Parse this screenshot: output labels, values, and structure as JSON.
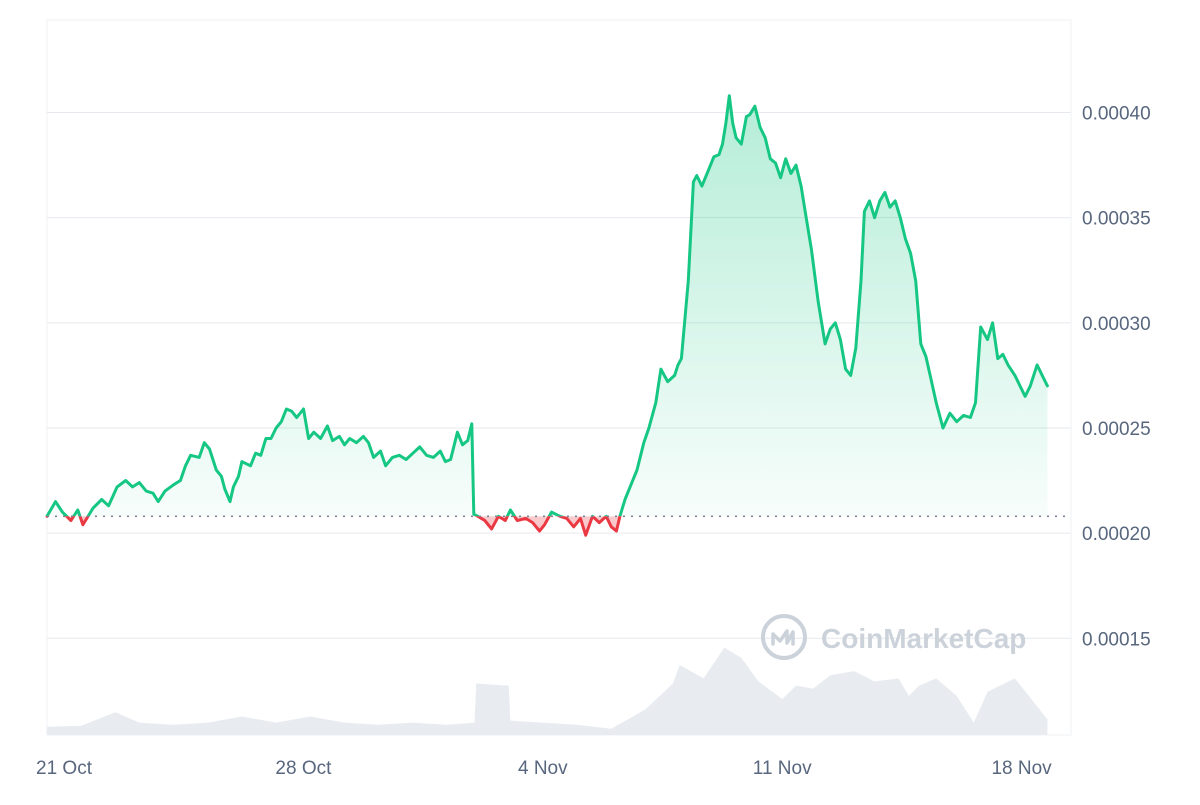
{
  "chart_data": {
    "type": "area",
    "y_unit": "USD",
    "ylim": [
      0.000104,
      0.000444
    ],
    "y_ticks": [
      {
        "value": 0.0004,
        "label": "0.00040"
      },
      {
        "value": 0.00035,
        "label": "0.00035"
      },
      {
        "value": 0.0003,
        "label": "0.00030"
      },
      {
        "value": 0.00025,
        "label": "0.00025"
      },
      {
        "value": 0.0002,
        "label": "0.00020"
      },
      {
        "value": 0.00015,
        "label": "0.00015"
      }
    ],
    "x_ticks": [
      {
        "day": 0,
        "label": "21 Oct"
      },
      {
        "day": 7,
        "label": "28 Oct"
      },
      {
        "day": 14,
        "label": "4 Nov"
      },
      {
        "day": 21,
        "label": "11 Nov"
      },
      {
        "day": 28,
        "label": "18 Nov"
      }
    ],
    "baseline": 0.000208,
    "grid": true,
    "colors": {
      "up": "#16c784",
      "down": "#ea3943",
      "grid": "#e6e9ee",
      "volume": "#e8ecf1",
      "axis_text": "#58667e",
      "watermark": "#ccd2da"
    },
    "price_series": [
      [
        0.0,
        0.000208
      ],
      [
        0.25,
        0.000215
      ],
      [
        0.45,
        0.00021
      ],
      [
        0.7,
        0.000206
      ],
      [
        0.9,
        0.000211
      ],
      [
        1.05,
        0.000204
      ],
      [
        1.35,
        0.000212
      ],
      [
        1.6,
        0.000216
      ],
      [
        1.8,
        0.000213
      ],
      [
        2.05,
        0.000222
      ],
      [
        2.3,
        0.000225
      ],
      [
        2.5,
        0.000222
      ],
      [
        2.7,
        0.000224
      ],
      [
        2.9,
        0.00022
      ],
      [
        3.1,
        0.000219
      ],
      [
        3.25,
        0.000215
      ],
      [
        3.45,
        0.00022
      ],
      [
        3.7,
        0.000223
      ],
      [
        3.9,
        0.000225
      ],
      [
        4.05,
        0.000232
      ],
      [
        4.2,
        0.000237
      ],
      [
        4.45,
        0.000236
      ],
      [
        4.6,
        0.000243
      ],
      [
        4.75,
        0.00024
      ],
      [
        4.95,
        0.00023
      ],
      [
        5.1,
        0.000227
      ],
      [
        5.2,
        0.000221
      ],
      [
        5.35,
        0.000215
      ],
      [
        5.45,
        0.000222
      ],
      [
        5.6,
        0.000227
      ],
      [
        5.7,
        0.000234
      ],
      [
        5.95,
        0.000232
      ],
      [
        6.1,
        0.000238
      ],
      [
        6.25,
        0.000237
      ],
      [
        6.4,
        0.000245
      ],
      [
        6.55,
        0.000245
      ],
      [
        6.7,
        0.00025
      ],
      [
        6.85,
        0.000253
      ],
      [
        7.0,
        0.000259
      ],
      [
        7.15,
        0.000258
      ],
      [
        7.3,
        0.000255
      ],
      [
        7.5,
        0.000259
      ],
      [
        7.65,
        0.000245
      ],
      [
        7.8,
        0.000248
      ],
      [
        8.0,
        0.000245
      ],
      [
        8.2,
        0.000251
      ],
      [
        8.35,
        0.000244
      ],
      [
        8.55,
        0.000246
      ],
      [
        8.7,
        0.000242
      ],
      [
        8.85,
        0.000245
      ],
      [
        9.05,
        0.000243
      ],
      [
        9.25,
        0.000246
      ],
      [
        9.4,
        0.000243
      ],
      [
        9.55,
        0.000236
      ],
      [
        9.75,
        0.000239
      ],
      [
        9.9,
        0.000232
      ],
      [
        10.1,
        0.000236
      ],
      [
        10.3,
        0.000237
      ],
      [
        10.5,
        0.000235
      ],
      [
        10.7,
        0.000238
      ],
      [
        10.9,
        0.000241
      ],
      [
        11.1,
        0.000237
      ],
      [
        11.3,
        0.000236
      ],
      [
        11.5,
        0.000239
      ],
      [
        11.65,
        0.000234
      ],
      [
        11.8,
        0.000235
      ],
      [
        12.0,
        0.000248
      ],
      [
        12.15,
        0.000242
      ],
      [
        12.3,
        0.000244
      ],
      [
        12.42,
        0.000252
      ],
      [
        12.48,
        0.000209
      ],
      [
        12.6,
        0.000208
      ],
      [
        12.8,
        0.000206
      ],
      [
        13.0,
        0.000202
      ],
      [
        13.2,
        0.000208
      ],
      [
        13.4,
        0.000206
      ],
      [
        13.55,
        0.000211
      ],
      [
        13.75,
        0.000206
      ],
      [
        14.0,
        0.000207
      ],
      [
        14.2,
        0.000205
      ],
      [
        14.4,
        0.000201
      ],
      [
        14.55,
        0.000204
      ],
      [
        14.75,
        0.00021
      ],
      [
        15.0,
        0.000208
      ],
      [
        15.2,
        0.000207
      ],
      [
        15.4,
        0.000203
      ],
      [
        15.6,
        0.000207
      ],
      [
        15.75,
        0.000199
      ],
      [
        15.95,
        0.000208
      ],
      [
        16.15,
        0.000205
      ],
      [
        16.35,
        0.000208
      ],
      [
        16.5,
        0.000203
      ],
      [
        16.65,
        0.000201
      ],
      [
        16.75,
        0.000208
      ],
      [
        16.9,
        0.000216
      ],
      [
        17.05,
        0.000222
      ],
      [
        17.25,
        0.00023
      ],
      [
        17.45,
        0.000243
      ],
      [
        17.6,
        0.00025
      ],
      [
        17.8,
        0.000262
      ],
      [
        17.95,
        0.000278
      ],
      [
        18.15,
        0.000272
      ],
      [
        18.35,
        0.000275
      ],
      [
        18.45,
        0.00028
      ],
      [
        18.55,
        0.000283
      ],
      [
        18.75,
        0.00032
      ],
      [
        18.9,
        0.000367
      ],
      [
        19.0,
        0.00037
      ],
      [
        19.15,
        0.000365
      ],
      [
        19.35,
        0.000373
      ],
      [
        19.5,
        0.000379
      ],
      [
        19.65,
        0.00038
      ],
      [
        19.75,
        0.000385
      ],
      [
        19.85,
        0.000395
      ],
      [
        19.95,
        0.000408
      ],
      [
        20.05,
        0.000395
      ],
      [
        20.15,
        0.000388
      ],
      [
        20.3,
        0.000385
      ],
      [
        20.45,
        0.000398
      ],
      [
        20.55,
        0.000399
      ],
      [
        20.7,
        0.000403
      ],
      [
        20.85,
        0.000393
      ],
      [
        21.0,
        0.000388
      ],
      [
        21.15,
        0.000378
      ],
      [
        21.3,
        0.000376
      ],
      [
        21.45,
        0.000369
      ],
      [
        21.6,
        0.000378
      ],
      [
        21.75,
        0.000371
      ],
      [
        21.9,
        0.000375
      ],
      [
        22.05,
        0.000365
      ],
      [
        22.2,
        0.00035
      ],
      [
        22.35,
        0.000335
      ],
      [
        22.55,
        0.00031
      ],
      [
        22.75,
        0.00029
      ],
      [
        22.9,
        0.000297
      ],
      [
        23.05,
        0.0003
      ],
      [
        23.2,
        0.000292
      ],
      [
        23.35,
        0.000278
      ],
      [
        23.5,
        0.000275
      ],
      [
        23.65,
        0.000288
      ],
      [
        23.8,
        0.00032
      ],
      [
        23.9,
        0.000353
      ],
      [
        24.05,
        0.000358
      ],
      [
        24.2,
        0.00035
      ],
      [
        24.35,
        0.000358
      ],
      [
        24.5,
        0.000362
      ],
      [
        24.65,
        0.000355
      ],
      [
        24.8,
        0.000358
      ],
      [
        24.95,
        0.00035
      ],
      [
        25.1,
        0.00034
      ],
      [
        25.25,
        0.000333
      ],
      [
        25.4,
        0.00032
      ],
      [
        25.55,
        0.00029
      ],
      [
        25.7,
        0.000284
      ],
      [
        25.85,
        0.000273
      ],
      [
        26.0,
        0.000262
      ],
      [
        26.2,
        0.00025
      ],
      [
        26.4,
        0.000257
      ],
      [
        26.6,
        0.000253
      ],
      [
        26.8,
        0.000256
      ],
      [
        27.0,
        0.000255
      ],
      [
        27.15,
        0.000262
      ],
      [
        27.3,
        0.000298
      ],
      [
        27.5,
        0.000292
      ],
      [
        27.65,
        0.0003
      ],
      [
        27.8,
        0.000283
      ],
      [
        27.95,
        0.000285
      ],
      [
        28.1,
        0.00028
      ],
      [
        28.3,
        0.000275
      ],
      [
        28.45,
        0.00027
      ],
      [
        28.6,
        0.000265
      ],
      [
        28.75,
        0.00027
      ],
      [
        28.95,
        0.00028
      ],
      [
        29.1,
        0.000275
      ],
      [
        29.25,
        0.00027
      ]
    ],
    "volume_series": [
      [
        0.0,
        0.08
      ],
      [
        1.0,
        0.09
      ],
      [
        2.0,
        0.22
      ],
      [
        2.7,
        0.12
      ],
      [
        3.7,
        0.1
      ],
      [
        4.7,
        0.12
      ],
      [
        5.7,
        0.18
      ],
      [
        6.7,
        0.12
      ],
      [
        7.7,
        0.18
      ],
      [
        8.7,
        0.12
      ],
      [
        9.7,
        0.1
      ],
      [
        10.7,
        0.12
      ],
      [
        11.7,
        0.1
      ],
      [
        12.5,
        0.12
      ],
      [
        12.55,
        0.5
      ],
      [
        13.5,
        0.48
      ],
      [
        13.55,
        0.14
      ],
      [
        14.5,
        0.12
      ],
      [
        15.5,
        0.1
      ],
      [
        16.5,
        0.06
      ],
      [
        17.5,
        0.25
      ],
      [
        18.3,
        0.5
      ],
      [
        18.5,
        0.68
      ],
      [
        19.2,
        0.55
      ],
      [
        19.8,
        0.85
      ],
      [
        20.3,
        0.75
      ],
      [
        20.8,
        0.52
      ],
      [
        21.5,
        0.35
      ],
      [
        21.9,
        0.48
      ],
      [
        22.4,
        0.45
      ],
      [
        22.9,
        0.58
      ],
      [
        23.6,
        0.62
      ],
      [
        24.2,
        0.52
      ],
      [
        24.9,
        0.55
      ],
      [
        25.2,
        0.38
      ],
      [
        25.5,
        0.48
      ],
      [
        26.0,
        0.55
      ],
      [
        26.6,
        0.38
      ],
      [
        27.1,
        0.12
      ],
      [
        27.5,
        0.42
      ],
      [
        28.3,
        0.55
      ],
      [
        28.9,
        0.3
      ],
      [
        29.25,
        0.15
      ]
    ],
    "volume_max": 1.0
  },
  "watermark": {
    "text": "CoinMarketCap",
    "logo": "coinmarketcap-logo"
  }
}
